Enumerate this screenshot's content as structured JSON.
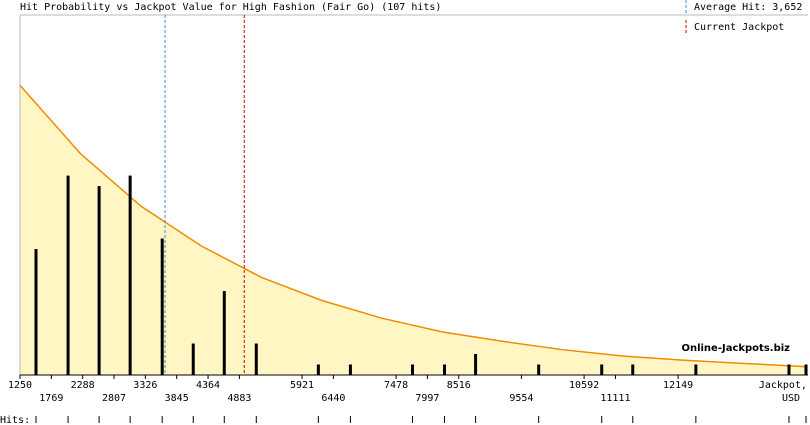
{
  "chart_data": {
    "type": "bar",
    "title": "Hit Probability vs Jackpot Value for High Fashion (Fair Go) (107 hits)",
    "x_label": [
      "Jackpot,",
      "USD"
    ],
    "xlim": [
      1250,
      14300
    ],
    "xticks": [
      1250,
      1769,
      2288,
      2807,
      3326,
      3845,
      4364,
      4883,
      5921,
      6440,
      7478,
      7997,
      8516,
      9554,
      10592,
      11111,
      12149
    ],
    "ylim": [
      0,
      34.3
    ],
    "series": [
      {
        "color": "#000000",
        "x": [
          1515,
          2046,
          2560,
          3074,
          3605,
          4119,
          4633,
          5163,
          6191,
          6722,
          7750,
          8280,
          8795,
          9840,
          10884,
          11398,
          12443,
          13985,
          14267
        ],
        "values": [
          12,
          19,
          18,
          19,
          13,
          3,
          8,
          3,
          1,
          1,
          1,
          1,
          2,
          1,
          1,
          1,
          1,
          1,
          1
        ]
      }
    ],
    "curve": {
      "color": "#f08c00",
      "fill": "#fff6c4",
      "x": [
        1250,
        2250,
        3250,
        4250,
        5250,
        6250,
        7250,
        8250,
        9250,
        10250,
        11250,
        12250,
        13250,
        14250
      ],
      "values": [
        27.6,
        21.1,
        16.1,
        12.3,
        9.3,
        7.1,
        5.4,
        4.1,
        3.2,
        2.4,
        1.8,
        1.4,
        1.1,
        0.8
      ]
    },
    "average_hit": {
      "value": 3652,
      "label": "Average Hit: 3,652",
      "color": "#3a8fd6"
    },
    "current_jackpot": {
      "value": 4964,
      "label": "Current Jackpot",
      "color": "#cc0000"
    },
    "rug_label": "Hits:",
    "watermark": "Online-Jackpots.biz"
  }
}
